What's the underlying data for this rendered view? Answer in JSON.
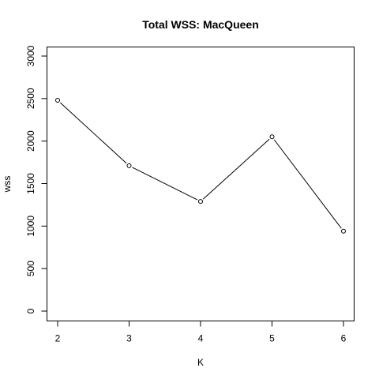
{
  "chart_data": {
    "type": "line",
    "title": "Total WSS: MacQueen",
    "xlabel": "K",
    "ylabel": "wss",
    "x": [
      2,
      3,
      4,
      5,
      6
    ],
    "series": [
      {
        "values": [
          2480,
          1710,
          1290,
          2050,
          940
        ]
      }
    ],
    "xticks": [
      2,
      3,
      4,
      5,
      6
    ],
    "xtick_labels": [
      "2",
      "3",
      "4",
      "5",
      "6"
    ],
    "yticks": [
      0,
      500,
      1000,
      1500,
      2000,
      2500,
      3000
    ],
    "ytick_labels": [
      "0",
      "500",
      "1000",
      "1500",
      "2000",
      "2500",
      "3000"
    ],
    "xlim": [
      2,
      6
    ],
    "ylim": [
      0,
      3000
    ],
    "marker": "open-circle",
    "grid": false,
    "line_color": "#000000"
  }
}
